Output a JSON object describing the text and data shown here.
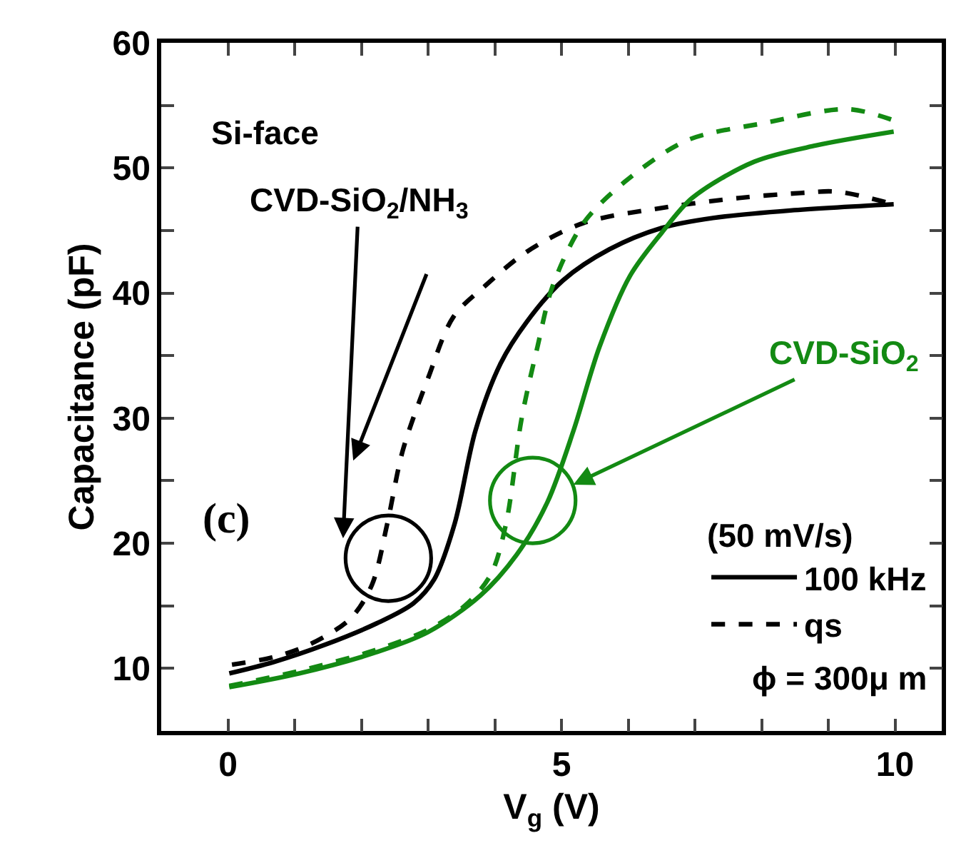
{
  "chart_data": {
    "type": "line",
    "xlabel": "V$_{g}$ (V)",
    "ylabel": "Capacitance (pF)",
    "xlim": [
      -1,
      10.7
    ],
    "ylim": [
      5,
      60
    ],
    "xticks": [
      0,
      {
        "value": 1,
        "label": null
      },
      {
        "value": 2,
        "label": null
      },
      {
        "value": 3,
        "label": null
      },
      {
        "value": 4,
        "label": null
      },
      5,
      {
        "value": 6,
        "label": null
      },
      {
        "value": 7,
        "label": null
      },
      {
        "value": 8,
        "label": null
      },
      {
        "value": 9,
        "label": null
      },
      10
    ],
    "yticks": [
      10,
      {
        "value": 15,
        "label": null
      },
      20,
      {
        "value": 25,
        "label": null
      },
      30,
      {
        "value": 35,
        "label": null
      },
      40,
      {
        "value": 45,
        "label": null
      },
      50,
      {
        "value": 55,
        "label": null
      },
      60
    ],
    "grid": false,
    "legend": "bottom right",
    "legend_title": "(50 mV/s)",
    "marker": "none",
    "series": [
      {
        "name": "100 kHz",
        "color": "#000000",
        "line_style": "solid",
        "x": [
          0.02,
          0.68,
          1.46,
          2.23,
          2.78,
          3.09,
          3.4,
          3.71,
          4.09,
          4.48,
          5.02,
          5.72,
          6.5,
          7.27,
          8.43,
          9.98
        ],
        "values": [
          9.6,
          10.5,
          11.9,
          13.6,
          15.2,
          17.1,
          21.6,
          29.0,
          34.4,
          37.7,
          41.0,
          43.5,
          45.2,
          46.0,
          46.6,
          47.1
        ]
      },
      {
        "name": "qs",
        "color": "#000000",
        "line_style": "dashed",
        "x": [
          0.06,
          0.68,
          1.22,
          1.84,
          2.16,
          2.39,
          2.62,
          3.0,
          3.38,
          3.86,
          4.48,
          5.33,
          6.5,
          7.66,
          8.59,
          9.13,
          9.98
        ],
        "values": [
          10.3,
          10.9,
          11.9,
          14.0,
          16.7,
          21.6,
          27.4,
          33.2,
          38.1,
          40.6,
          43.3,
          45.6,
          46.8,
          47.6,
          48.0,
          48.1,
          47.1
        ]
      },
      {
        "color": "#138a13",
        "line_style": "solid",
        "x": [
          0.02,
          1.07,
          2.23,
          3.0,
          3.78,
          4.33,
          4.79,
          5.18,
          5.57,
          6.03,
          6.5,
          6.96,
          7.89,
          8.82,
          9.98
        ],
        "values": [
          8.5,
          9.6,
          11.3,
          12.9,
          15.8,
          19.1,
          23.3,
          29.0,
          35.7,
          41.4,
          44.8,
          47.6,
          50.5,
          51.8,
          52.9
        ]
      },
      {
        "color": "#138a13",
        "line_style": "dashed",
        "x": [
          0.02,
          1.07,
          2.23,
          3.0,
          3.55,
          3.94,
          4.17,
          4.4,
          4.64,
          4.87,
          5.33,
          5.95,
          6.88,
          8.05,
          9.29,
          9.98
        ],
        "values": [
          8.6,
          9.8,
          11.5,
          13.1,
          15.0,
          17.5,
          21.6,
          29.9,
          35.7,
          40.6,
          45.6,
          48.9,
          52.2,
          53.6,
          54.7,
          53.8
        ]
      }
    ],
    "annotations": [
      "Si-face",
      "CVD-SiO$_{2}$/NH$_{3}$",
      "CVD-SiO$_{2}$",
      "(c)",
      "ϕ = 300μ m"
    ]
  }
}
